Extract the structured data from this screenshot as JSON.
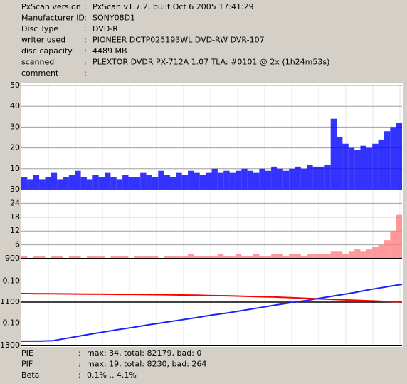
{
  "info": {
    "rows": [
      [
        "PxScan version",
        "PxScan v1.7.2, built Oct  6 2005 17:41:29"
      ],
      [
        "Manufacturer ID",
        "SONY08D1"
      ],
      [
        "Disc Type",
        "DVD-R"
      ],
      [
        "writer used",
        "PIONEER DCTP025193WL DVD-RW DVR-107"
      ],
      [
        "disc capacity",
        "4489 MB"
      ],
      [
        "scanned",
        "PLEXTOR DVDR PX-712A 1.07 TLA: #0101 @ 2x (1h24m53s)"
      ],
      [
        "comment",
        ""
      ]
    ]
  },
  "separator": ":",
  "chart_data": [
    {
      "type": "bar",
      "ylim": [
        0,
        50
      ],
      "yticks": [
        10,
        20,
        30,
        40,
        50
      ],
      "grid": true,
      "series": [
        {
          "name": "PIE",
          "color": "#0000ff",
          "values": [
            6,
            5,
            7,
            5,
            6,
            8,
            5,
            6,
            7,
            9,
            6,
            5,
            7,
            6,
            8,
            6,
            5,
            7,
            6,
            6,
            8,
            7,
            6,
            9,
            7,
            6,
            8,
            7,
            9,
            8,
            7,
            8,
            10,
            8,
            9,
            8,
            9,
            10,
            9,
            8,
            10,
            9,
            11,
            10,
            9,
            10,
            11,
            10,
            12,
            11,
            11,
            12,
            34,
            25,
            22,
            20,
            19,
            21,
            20,
            22,
            24,
            28,
            30,
            32
          ]
        }
      ]
    },
    {
      "type": "bar",
      "ylim": [
        0,
        30
      ],
      "yticks": [
        6,
        12,
        18,
        24,
        30
      ],
      "grid": true,
      "series": [
        {
          "name": "PIF",
          "color": "#ff8080",
          "values": [
            1,
            0,
            1,
            1,
            0,
            1,
            1,
            0,
            1,
            1,
            0,
            1,
            1,
            1,
            0,
            1,
            1,
            1,
            0,
            1,
            1,
            1,
            1,
            0,
            1,
            1,
            1,
            1,
            2,
            1,
            1,
            1,
            1,
            2,
            1,
            1,
            2,
            1,
            1,
            2,
            1,
            1,
            2,
            2,
            1,
            2,
            2,
            1,
            2,
            2,
            2,
            2,
            3,
            3,
            2,
            3,
            4,
            3,
            4,
            5,
            6,
            8,
            12,
            19
          ]
        }
      ]
    },
    {
      "type": "line",
      "ylim": [
        -0.207,
        0.207
      ],
      "yticks": [
        {
          "value": 0.1,
          "label": "0.10"
        },
        {
          "value": -0.1,
          "label": "-0.10"
        }
      ],
      "y2lim": [
        1300,
        900
      ],
      "y2ticks": [
        900,
        1100,
        1300
      ],
      "grid": true,
      "series": [
        {
          "name": "Beta",
          "color": "#ff0000",
          "values": [
            0.041,
            0.04,
            0.04,
            0.039,
            0.038,
            0.038,
            0.037,
            0.037,
            0.036,
            0.035,
            0.034,
            0.033,
            0.031,
            0.03,
            0.028,
            0.026,
            0.024,
            0.021,
            0.018,
            0.015,
            0.012,
            0.009,
            0.006,
            0.003,
            0.001
          ]
        },
        {
          "color": "#2020ff",
          "axis": "y2",
          "values": [
            1280,
            1280,
            1278,
            1265,
            1252,
            1240,
            1228,
            1217,
            1205,
            1194,
            1183,
            1172,
            1160,
            1150,
            1138,
            1126,
            1114,
            1103,
            1092,
            1080,
            1068,
            1056,
            1042,
            1030,
            1018
          ]
        }
      ]
    }
  ],
  "summary": {
    "rows": [
      "max: 34, total: 82179, bad: 0",
      "max: 19, total: 8230, bad: 264",
      "0.1% .. 4.1%"
    ]
  }
}
